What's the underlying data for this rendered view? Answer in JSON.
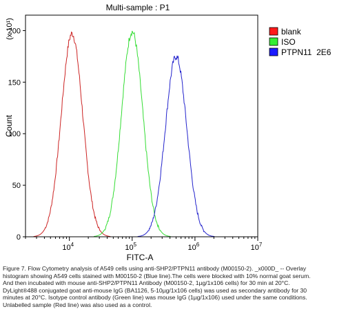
{
  "chart_data": {
    "type": "line",
    "title": "Multi-sample : P1",
    "xlabel": "FITC-A",
    "ylabel": "Count",
    "y_multiplier": "(x 10¹)",
    "x_scale": "log",
    "xlim": [
      2000,
      10000000
    ],
    "ylim": [
      0,
      215
    ],
    "x_ticks": [
      {
        "value": 10000,
        "base": "10",
        "exp": "4"
      },
      {
        "value": 100000,
        "base": "10",
        "exp": "5"
      },
      {
        "value": 1000000,
        "base": "10",
        "exp": "6"
      },
      {
        "value": 10000000,
        "base": "10",
        "exp": "7"
      }
    ],
    "y_ticks": [
      0,
      50,
      100,
      150,
      200
    ],
    "grid": false,
    "legend_position": "top-right",
    "series": [
      {
        "name": "blank",
        "color": "#cc2222",
        "fill": "#ff1a1a",
        "peak_x": 11000,
        "peak_y": 197
      },
      {
        "name": "ISO",
        "color": "#33dd33",
        "fill": "#33ee33",
        "peak_x": 100000,
        "peak_y": 199
      },
      {
        "name": "PTPN11  2E6",
        "color": "#2222cc",
        "fill": "#1a1aff",
        "peak_x": 500000,
        "peak_y": 175
      }
    ]
  },
  "caption": {
    "line1": "Figure 7. Flow Cytometry analysis of A549 cells using anti-SHP2/PTPN11 antibody (M00150-2). _x000D_ -- Overlay",
    "line2": "histogram showing A549 cells stained with M00150-2 (Blue line).The cells were blocked with 10% normal goat serum.",
    "line3": "And then incubated with mouse anti-SHP2/PTPN11 Antibody (M00150-2, 1µg/1x106 cells) for 30 min at 20°C.",
    "line4": "DyLight®488 conjugated goat anti-mouse IgG (BA1126, 5-10µg/1x106 cells) was used as secondary antibody for 30",
    "line5": "minutes at 20°C. Isotype control antibody (Green line) was mouse IgG (1µg/1x106) used under the same conditions.",
    "line6": "Unlabelled sample (Red line) was also used as a control."
  }
}
